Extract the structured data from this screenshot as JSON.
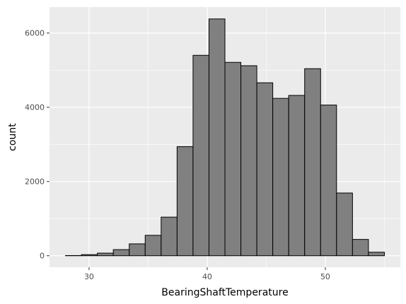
{
  "chart_data": {
    "type": "bar",
    "xlabel": "BearingShaftTemperature",
    "ylabel": "count",
    "bins": [
      {
        "x0": 28.0,
        "x1": 29.35,
        "count": 5
      },
      {
        "x0": 29.35,
        "x1": 30.7,
        "count": 30
      },
      {
        "x0": 30.7,
        "x1": 32.05,
        "count": 70
      },
      {
        "x0": 32.05,
        "x1": 33.4,
        "count": 165
      },
      {
        "x0": 33.4,
        "x1": 34.75,
        "count": 320
      },
      {
        "x0": 34.75,
        "x1": 36.1,
        "count": 550
      },
      {
        "x0": 36.1,
        "x1": 37.45,
        "count": 1040
      },
      {
        "x0": 37.45,
        "x1": 38.8,
        "count": 2940
      },
      {
        "x0": 38.8,
        "x1": 40.15,
        "count": 5400
      },
      {
        "x0": 40.15,
        "x1": 41.5,
        "count": 6380
      },
      {
        "x0": 41.5,
        "x1": 42.85,
        "count": 5210
      },
      {
        "x0": 42.85,
        "x1": 44.2,
        "count": 5120
      },
      {
        "x0": 44.2,
        "x1": 45.55,
        "count": 4660
      },
      {
        "x0": 45.55,
        "x1": 46.9,
        "count": 4240
      },
      {
        "x0": 46.9,
        "x1": 48.25,
        "count": 4320
      },
      {
        "x0": 48.25,
        "x1": 49.6,
        "count": 5040
      },
      {
        "x0": 49.6,
        "x1": 50.95,
        "count": 4060
      },
      {
        "x0": 50.95,
        "x1": 52.3,
        "count": 1690
      },
      {
        "x0": 52.3,
        "x1": 53.65,
        "count": 440
      },
      {
        "x0": 53.65,
        "x1": 55.0,
        "count": 95
      }
    ],
    "xlim": [
      26.65,
      56.35
    ],
    "ylim": [
      -310,
      6700
    ],
    "x_ticks": [
      30,
      40,
      50
    ],
    "y_ticks": [
      0,
      2000,
      4000,
      6000
    ],
    "grid": true,
    "colors": {
      "panel": "#ebebeb",
      "grid_major": "#ffffff",
      "bar_fill": "#808080",
      "bar_stroke": "#000000"
    }
  }
}
